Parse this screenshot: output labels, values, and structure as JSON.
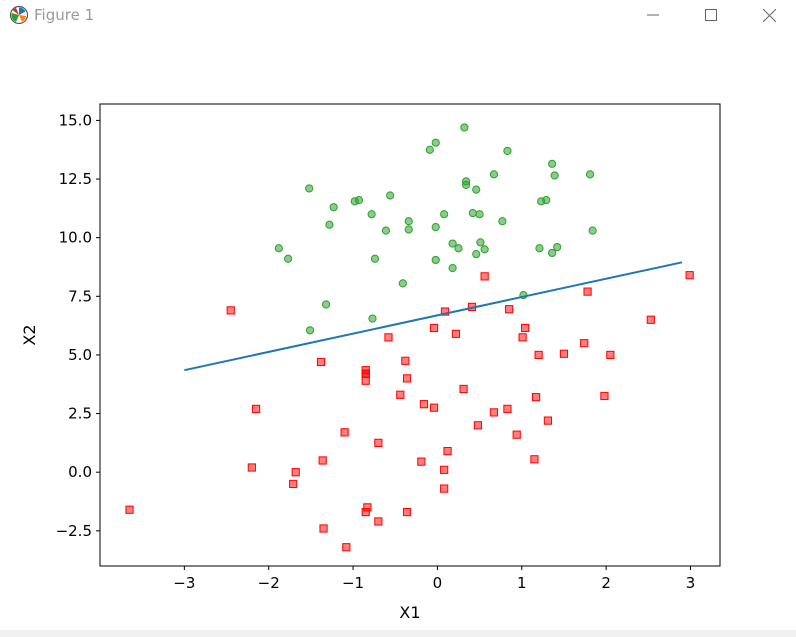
{
  "window": {
    "title": "Figure 1",
    "icon": "matplotlib-icon",
    "controls": {
      "minimize": "minimize-icon",
      "maximize": "maximize-icon",
      "close": "close-icon"
    }
  },
  "colors": {
    "class1": "#2ca02c",
    "class0": "#ff0000",
    "boundary": "#1f77b4"
  },
  "chart_data": {
    "type": "scatter",
    "xlabel": "X1",
    "ylabel": "X2",
    "xlim": [
      -4.0,
      3.35
    ],
    "ylim": [
      -4.0,
      15.7
    ],
    "xticks": [
      -3,
      -2,
      -1,
      0,
      1,
      2,
      3
    ],
    "xtick_labels": [
      "−3",
      "−2",
      "−1",
      "0",
      "1",
      "2",
      "3"
    ],
    "yticks": [
      -2.5,
      0.0,
      2.5,
      5.0,
      7.5,
      10.0,
      12.5,
      15.0
    ],
    "ytick_labels": [
      "−2.5",
      "0.0",
      "2.5",
      "5.0",
      "7.5",
      "10.0",
      "12.5",
      "15.0"
    ],
    "grid": false,
    "series": [
      {
        "marker": "circle",
        "x": [
          0.32,
          -0.02,
          -0.09,
          0.83,
          1.36,
          0.34,
          0.34,
          1.39,
          0.67,
          1.81,
          -1.52,
          0.46,
          -0.56,
          -0.98,
          -0.93,
          -1.23,
          -0.78,
          0.42,
          0.08,
          0.77,
          -1.28,
          0.5,
          -0.34,
          1.29,
          1.23,
          -0.02,
          -0.61,
          -0.34,
          0.18,
          1.42,
          0.25,
          1.36,
          1.21,
          0.56,
          0.51,
          0.46,
          -0.74,
          0.18,
          -0.02,
          -0.41,
          1.02,
          -1.32,
          -0.77,
          -1.51,
          -1.88,
          -1.77,
          1.84
        ],
        "y": [
          14.7,
          14.05,
          13.75,
          13.7,
          13.15,
          12.4,
          12.25,
          12.65,
          12.7,
          12.7,
          12.1,
          12.05,
          11.8,
          11.55,
          11.6,
          11.3,
          11.0,
          11.05,
          11.0,
          10.7,
          10.55,
          11.0,
          10.7,
          11.6,
          11.55,
          10.45,
          10.3,
          10.35,
          9.75,
          9.6,
          9.55,
          9.35,
          9.55,
          9.5,
          9.8,
          9.3,
          9.1,
          8.7,
          9.05,
          8.05,
          7.55,
          7.15,
          6.55,
          6.05,
          9.55,
          9.1,
          10.3
        ]
      },
      {
        "marker": "square",
        "x": [
          -3.65,
          -2.45,
          -2.15,
          -2.2,
          -1.68,
          -1.71,
          -1.38,
          -1.36,
          -1.35,
          -1.1,
          -1.08,
          -0.85,
          -0.85,
          -0.85,
          -0.85,
          -0.83,
          -0.85,
          -0.7,
          -0.7,
          -0.58,
          -0.44,
          -0.38,
          -0.36,
          -0.36,
          -0.19,
          -0.16,
          -0.04,
          -0.04,
          0.08,
          0.08,
          0.09,
          0.12,
          0.22,
          0.31,
          0.41,
          0.48,
          0.56,
          0.67,
          0.83,
          0.85,
          0.94,
          1.01,
          1.04,
          1.15,
          1.17,
          1.2,
          1.31,
          1.5,
          1.74,
          1.78,
          1.98,
          2.05,
          2.53,
          2.99
        ],
        "y": [
          -1.6,
          6.9,
          2.7,
          0.2,
          0.0,
          -0.5,
          4.7,
          0.5,
          -2.4,
          1.7,
          -3.2,
          4.35,
          4.2,
          3.9,
          -1.7,
          -1.5,
          4.2,
          -2.1,
          1.25,
          5.75,
          3.3,
          4.75,
          4.0,
          -1.7,
          0.45,
          2.9,
          2.75,
          6.15,
          -0.7,
          0.1,
          6.85,
          0.9,
          5.9,
          3.55,
          7.05,
          2.0,
          8.35,
          2.55,
          2.7,
          6.95,
          1.6,
          5.75,
          6.15,
          0.55,
          3.2,
          5.0,
          2.2,
          5.05,
          5.5,
          7.7,
          3.25,
          5.0,
          6.5,
          8.4
        ]
      }
    ],
    "line": {
      "x": [
        -3.0,
        2.9
      ],
      "y": [
        4.35,
        8.95
      ]
    }
  }
}
